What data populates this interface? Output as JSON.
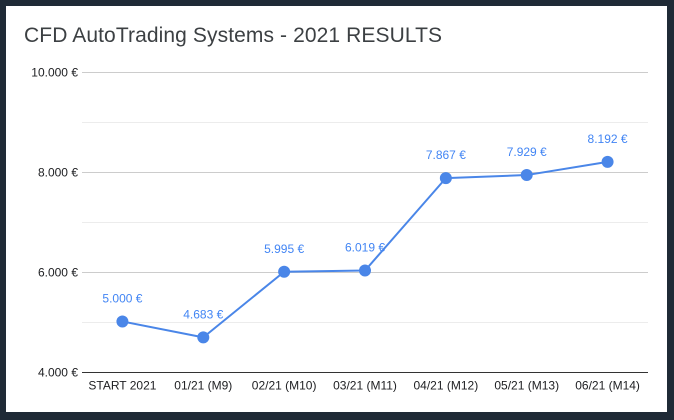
{
  "chart_data": {
    "type": "line",
    "title": "CFD AutoTrading Systems - 2021 RESULTS",
    "xlabel": "",
    "ylabel": "",
    "categories": [
      "START 2021",
      "01/21 (M9)",
      "02/21 (M10)",
      "03/21 (M11)",
      "04/21 (M12)",
      "05/21 (M13)",
      "06/21 (M14)"
    ],
    "series": [
      {
        "values": [
          5000,
          4683,
          5995,
          6019,
          7867,
          7929,
          8192
        ],
        "data_labels": [
          "5.000 €",
          "4.683 €",
          "5.995 €",
          "6.019 €",
          "7.867 €",
          "7.929 €",
          "8.192 €"
        ]
      }
    ],
    "ylim": [
      4000,
      10000
    ],
    "yticks": [
      4000,
      6000,
      8000,
      10000
    ],
    "ytick_labels": [
      "4.000 €",
      "6.000 €",
      "8.000 €",
      "10.000 €"
    ],
    "grid": true,
    "legend": "none",
    "colors": {
      "line": "#4a86e8",
      "label": "#4285f4",
      "grid": "#cccccc",
      "background": "#ffffff",
      "frame": "#1f2a36"
    }
  }
}
